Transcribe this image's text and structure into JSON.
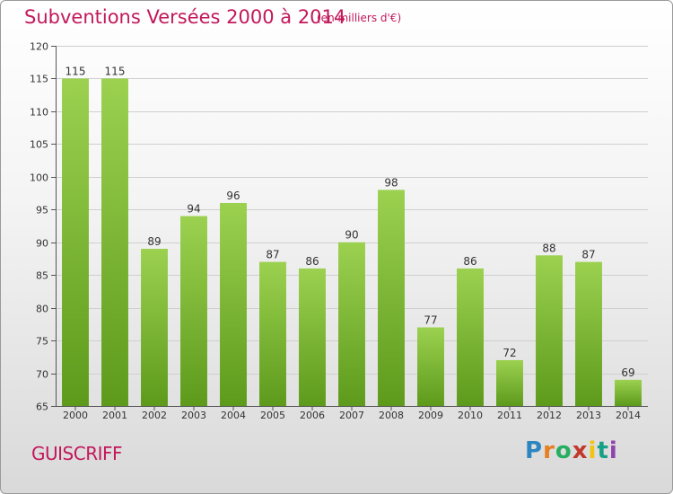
{
  "header": {
    "title": "Subventions Versées 2000 à 2014",
    "subtitle": "(en milliers d'€)"
  },
  "footer": {
    "commune": "GUISCRIFF",
    "logo": {
      "letters": [
        "P",
        "r",
        "o",
        "x",
        "i",
        "t",
        "i"
      ],
      "colors": [
        "#2e86c1",
        "#e67e22",
        "#27ae60",
        "#c0392b",
        "#f1c40f",
        "#16a085",
        "#8e44ad"
      ]
    }
  },
  "colors": {
    "accent": "#c2185b",
    "bar_top": "#9cd150",
    "bar_bottom": "#5d9a1b",
    "grid": "#cfcfcf"
  },
  "chart_data": {
    "type": "bar",
    "categories": [
      "2000",
      "2001",
      "2002",
      "2003",
      "2004",
      "2005",
      "2006",
      "2007",
      "2008",
      "2009",
      "2010",
      "2011",
      "2012",
      "2013",
      "2014"
    ],
    "values": [
      115,
      115,
      89,
      94,
      96,
      87,
      86,
      90,
      98,
      77,
      86,
      72,
      88,
      87,
      69
    ],
    "title": "Subventions Versées 2000 à 2014",
    "subtitle": "(en milliers d'€)",
    "ylim": [
      65,
      120
    ],
    "yticks": [
      65,
      70,
      75,
      80,
      85,
      90,
      95,
      100,
      105,
      110,
      115,
      120
    ],
    "grid": true
  }
}
